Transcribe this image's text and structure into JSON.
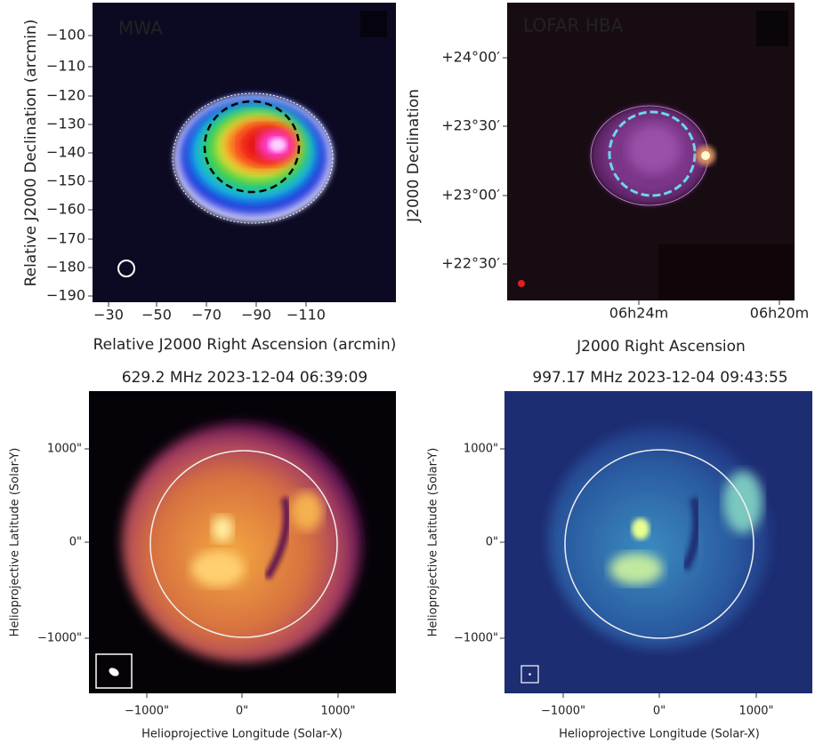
{
  "panels": [
    {
      "label": "MWA",
      "y_ticks": [
        "−100",
        "−110",
        "−120",
        "−130",
        "−140",
        "−150",
        "−160",
        "−170",
        "−180",
        "−190"
      ],
      "x_ticks": [
        "−30",
        "−50",
        "−70",
        "−90",
        "−110"
      ],
      "x_label": "Relative J2000 Right Ascension (arcmin)",
      "y_label": "Relative J2000 Declination (arcmin)"
    },
    {
      "label": "LOFAR HBA",
      "y_ticks": [
        "+24°00′",
        "+23°30′",
        "+23°00′",
        "+22°30′"
      ],
      "x_ticks": [
        "06h24m",
        "06h20m"
      ],
      "x_label": "J2000 Right Ascension",
      "y_label": "J2000 Declination"
    },
    {
      "title": "629.2 MHz 2023-12-04 06:39:09",
      "y_ticks": [
        "1000\"",
        "0\"",
        "−1000\""
      ],
      "x_ticks": [
        "−1000\"",
        "0\"",
        "1000\""
      ],
      "x_label": "Helioprojective Longitude (Solar-X)",
      "y_label": "Helioprojective Latitude (Solar-Y)"
    },
    {
      "title": "997.17 MHz 2023-12-04 09:43:55",
      "y_ticks": [
        "1000\"",
        "0\"",
        "−1000\""
      ],
      "x_ticks": [
        "−1000\"",
        "0\"",
        "1000\""
      ],
      "x_label": "Helioprojective Longitude (Solar-X)",
      "y_label": "Helioprojective Latitude (Solar-Y)"
    }
  ]
}
